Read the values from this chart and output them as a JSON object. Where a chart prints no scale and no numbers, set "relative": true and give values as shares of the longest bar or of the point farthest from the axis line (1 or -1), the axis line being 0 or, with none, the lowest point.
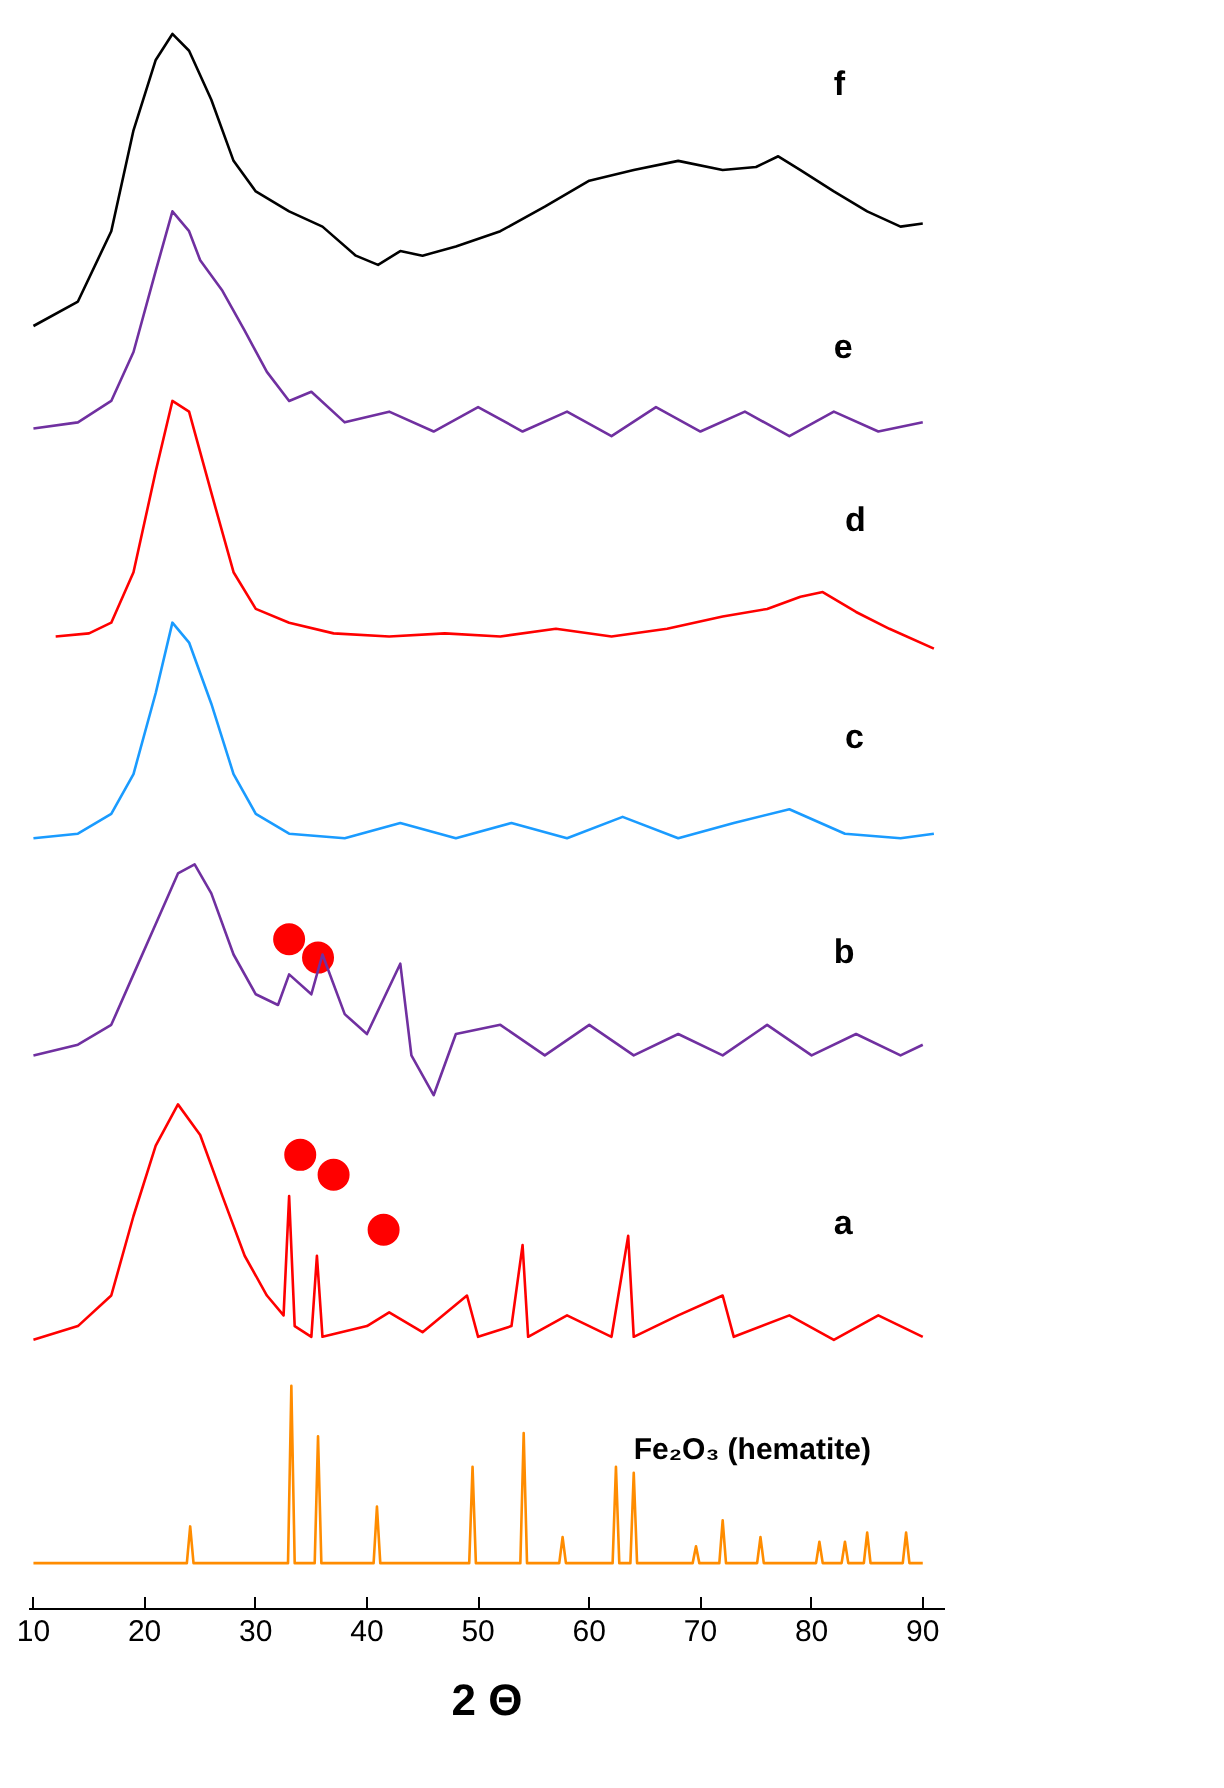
{
  "chart_data": {
    "type": "line",
    "relative": true,
    "xlabel": "2 Θ",
    "xlim": [
      9.6,
      92
    ],
    "xticks": [
      10,
      20,
      30,
      40,
      50,
      60,
      70,
      80,
      90
    ],
    "series": [
      {
        "name": "f",
        "color": "#000000",
        "x": [
          10,
          14,
          17,
          19,
          21,
          22.5,
          24,
          26,
          28,
          30,
          33,
          36,
          39,
          41,
          43,
          45,
          48,
          52,
          56,
          60,
          64,
          68,
          72,
          75,
          77,
          79,
          82,
          85,
          88,
          90
        ],
        "values": [
          0.809,
          0.825,
          0.871,
          0.937,
          0.983,
          1.0,
          0.989,
          0.957,
          0.917,
          0.897,
          0.884,
          0.874,
          0.855,
          0.849,
          0.858,
          0.855,
          0.861,
          0.871,
          0.887,
          0.904,
          0.911,
          0.917,
          0.911,
          0.913,
          0.92,
          0.911,
          0.897,
          0.884,
          0.874,
          0.876
        ]
      },
      {
        "name": "e",
        "color": "#7030a0",
        "x": [
          10,
          14,
          17,
          19,
          21,
          22.5,
          24,
          25,
          27,
          29,
          31,
          33,
          35,
          38,
          42,
          46,
          50,
          54,
          58,
          62,
          66,
          70,
          74,
          78,
          82,
          86,
          90
        ],
        "values": [
          0.742,
          0.746,
          0.76,
          0.792,
          0.845,
          0.884,
          0.871,
          0.852,
          0.832,
          0.806,
          0.779,
          0.76,
          0.766,
          0.746,
          0.753,
          0.74,
          0.756,
          0.74,
          0.753,
          0.737,
          0.756,
          0.74,
          0.753,
          0.737,
          0.753,
          0.74,
          0.746
        ]
      },
      {
        "name": "d",
        "color": "#ff0000",
        "x": [
          12,
          15,
          17,
          19,
          21,
          22.5,
          24,
          26,
          28,
          30,
          33,
          37,
          42,
          47,
          52,
          57,
          62,
          67,
          72,
          76,
          79,
          81,
          84,
          87,
          91
        ],
        "values": [
          0.606,
          0.608,
          0.615,
          0.648,
          0.714,
          0.76,
          0.753,
          0.7,
          0.648,
          0.624,
          0.615,
          0.608,
          0.606,
          0.608,
          0.606,
          0.611,
          0.606,
          0.611,
          0.619,
          0.624,
          0.632,
          0.635,
          0.622,
          0.611,
          0.598
        ]
      },
      {
        "name": "c",
        "color": "#1a9bff",
        "x": [
          10,
          14,
          17,
          19,
          21,
          22.5,
          24,
          26,
          28,
          30,
          33,
          38,
          43,
          48,
          53,
          58,
          63,
          68,
          73,
          78,
          83,
          88,
          91
        ],
        "values": [
          0.474,
          0.477,
          0.49,
          0.516,
          0.569,
          0.615,
          0.602,
          0.562,
          0.516,
          0.49,
          0.477,
          0.474,
          0.484,
          0.474,
          0.484,
          0.474,
          0.488,
          0.474,
          0.484,
          0.493,
          0.477,
          0.474,
          0.477
        ]
      },
      {
        "name": "b",
        "color": "#7030a0",
        "x": [
          10,
          14,
          17,
          19,
          21,
          23,
          24.5,
          26,
          28,
          30,
          32,
          33,
          35,
          36,
          38,
          40,
          43,
          44,
          46,
          48,
          52,
          56,
          60,
          64,
          68,
          72,
          76,
          80,
          84,
          88,
          90
        ],
        "values": [
          0.332,
          0.339,
          0.352,
          0.385,
          0.418,
          0.451,
          0.457,
          0.438,
          0.398,
          0.372,
          0.365,
          0.385,
          0.372,
          0.398,
          0.359,
          0.346,
          0.392,
          0.332,
          0.306,
          0.346,
          0.352,
          0.332,
          0.352,
          0.332,
          0.346,
          0.332,
          0.352,
          0.332,
          0.346,
          0.332,
          0.339
        ]
      },
      {
        "name": "a",
        "color": "#ff0000",
        "x": [
          10,
          14,
          17,
          19,
          21,
          23,
          25,
          27,
          29,
          31,
          32.5,
          33,
          33.5,
          35,
          35.5,
          36,
          40,
          42,
          45,
          49,
          50,
          53,
          54,
          54.5,
          58,
          62,
          63.5,
          64,
          68,
          72,
          73,
          78,
          82,
          86,
          90
        ],
        "values": [
          0.146,
          0.155,
          0.175,
          0.227,
          0.273,
          0.3,
          0.28,
          0.24,
          0.201,
          0.175,
          0.162,
          0.24,
          0.155,
          0.148,
          0.201,
          0.148,
          0.155,
          0.164,
          0.151,
          0.175,
          0.148,
          0.155,
          0.208,
          0.148,
          0.162,
          0.148,
          0.214,
          0.148,
          0.162,
          0.175,
          0.148,
          0.162,
          0.146,
          0.162,
          0.148
        ]
      },
      {
        "name": "Fe₂O₃ (hematite)",
        "color": "#ff8c00",
        "x": [
          10,
          23.8,
          24.1,
          24.4,
          32.9,
          33.2,
          33.5,
          35.3,
          35.6,
          35.9,
          40.6,
          40.9,
          41.2,
          49.2,
          49.5,
          49.8,
          53.8,
          54.1,
          54.4,
          57.3,
          57.6,
          57.9,
          62.1,
          62.4,
          62.7,
          63.7,
          64.0,
          64.3,
          69.3,
          69.6,
          69.9,
          71.7,
          72.0,
          72.3,
          75.1,
          75.4,
          75.7,
          80.4,
          80.7,
          81.0,
          82.7,
          83.0,
          83.3,
          84.7,
          85.0,
          85.3,
          88.2,
          88.5,
          88.8,
          90
        ],
        "values": [
          0,
          0,
          0.024,
          0,
          0,
          0.116,
          0,
          0,
          0.083,
          0,
          0,
          0.037,
          0,
          0,
          0.063,
          0,
          0,
          0.085,
          0,
          0,
          0.017,
          0,
          0,
          0.063,
          0,
          0,
          0.059,
          0,
          0,
          0.011,
          0,
          0,
          0.028,
          0,
          0,
          0.017,
          0,
          0,
          0.014,
          0,
          0,
          0.014,
          0,
          0,
          0.02,
          0,
          0,
          0.02,
          0,
          0
        ]
      },
      {
        "type": "scatter",
        "marker": "circle",
        "color": "#ff0000",
        "x": [
          33,
          35.6,
          34,
          37,
          41.5
        ],
        "values": [
          0.408,
          0.396,
          0.267,
          0.254,
          0.218
        ]
      }
    ]
  }
}
